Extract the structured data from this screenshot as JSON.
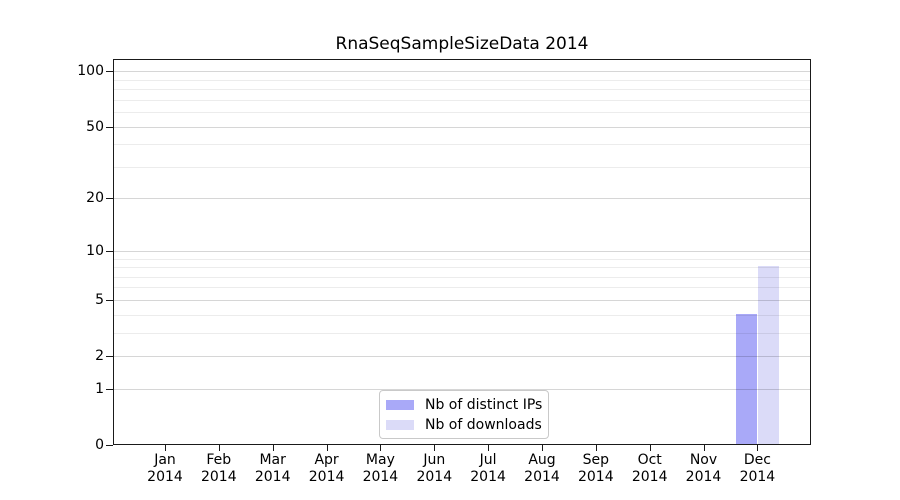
{
  "chart_data": {
    "type": "bar",
    "title": "RnaSeqSampleSizeData 2014",
    "year": "2014",
    "months": [
      "Jan",
      "Feb",
      "Mar",
      "Apr",
      "May",
      "Jun",
      "Jul",
      "Aug",
      "Sep",
      "Oct",
      "Nov",
      "Dec"
    ],
    "series": [
      {
        "name": "Nb of distinct IPs",
        "color": "#a9a9f8",
        "values": [
          0,
          0,
          0,
          0,
          0,
          0,
          0,
          0,
          0,
          0,
          0,
          4
        ]
      },
      {
        "name": "Nb of downloads",
        "color": "#dbdbf8",
        "values": [
          0,
          0,
          0,
          0,
          0,
          0,
          0,
          0,
          0,
          0,
          0,
          8
        ]
      }
    ],
    "y_scale": "log1p",
    "ylim": [
      0,
      116
    ],
    "y_major_ticks": [
      0,
      1,
      2,
      5,
      10,
      20,
      50,
      100
    ],
    "y_minor_ticks": [
      3,
      4,
      6,
      7,
      8,
      9,
      30,
      40,
      60,
      70,
      80,
      90
    ],
    "grid": true,
    "legend_position": "bottom-center",
    "colors": {
      "major_grid": "#d6d6d6",
      "minor_grid": "#ececec",
      "frame": "#1a1a1a",
      "text": "#000000",
      "background": "#ffffff"
    }
  }
}
